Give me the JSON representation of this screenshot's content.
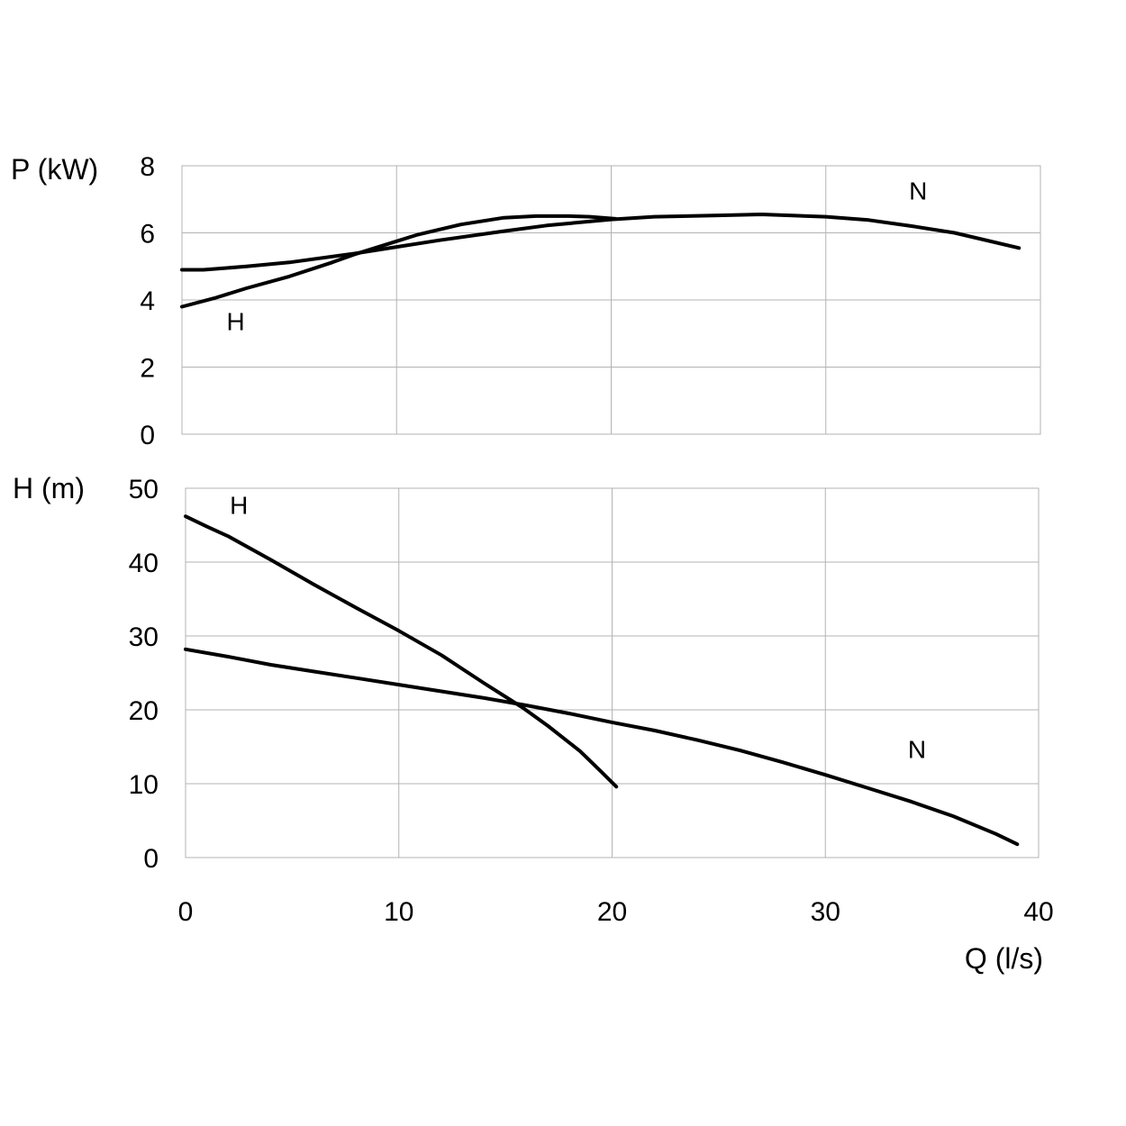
{
  "chart_data": [
    {
      "type": "line",
      "id": "power",
      "ylabel": "P (kW)",
      "xlim": [
        0,
        40
      ],
      "ylim": [
        0,
        8
      ],
      "x_ticks": [
        0,
        10,
        20,
        30,
        40
      ],
      "y_ticks": [
        0,
        2,
        4,
        6,
        8
      ],
      "grid": true,
      "series": [
        {
          "name": "N",
          "x": [
            0,
            1,
            3,
            5,
            8,
            10,
            12,
            15,
            17,
            20,
            22,
            25,
            27,
            30,
            32,
            34,
            36,
            39
          ],
          "y": [
            4.9,
            4.9,
            5.0,
            5.12,
            5.38,
            5.58,
            5.78,
            6.05,
            6.22,
            6.4,
            6.48,
            6.52,
            6.55,
            6.48,
            6.38,
            6.2,
            6.0,
            5.55
          ]
        },
        {
          "name": "H",
          "x": [
            0,
            1.5,
            3,
            5,
            7,
            8,
            10,
            11,
            13,
            15,
            16.5,
            18,
            19,
            20.2
          ],
          "y": [
            3.8,
            4.05,
            4.35,
            4.7,
            5.12,
            5.35,
            5.75,
            5.95,
            6.25,
            6.45,
            6.5,
            6.5,
            6.48,
            6.42
          ]
        }
      ],
      "annotations": [
        {
          "text": "N",
          "x": 34.3,
          "y": 7.0
        },
        {
          "text": "H",
          "x": 2.5,
          "y": 3.1
        }
      ]
    },
    {
      "type": "line",
      "id": "head",
      "ylabel": "H (m)",
      "xlabel": "Q (l/s)",
      "xlim": [
        0,
        40
      ],
      "ylim": [
        0,
        50
      ],
      "x_ticks": [
        0,
        10,
        20,
        30,
        40
      ],
      "y_ticks": [
        0,
        10,
        20,
        30,
        40,
        50
      ],
      "grid": true,
      "series": [
        {
          "name": "H",
          "x": [
            0,
            1,
            2,
            4,
            6,
            8,
            10,
            12,
            14,
            15.8,
            17,
            18.5,
            19.5,
            20.2
          ],
          "y": [
            46.2,
            44.8,
            43.5,
            40.3,
            37.0,
            33.8,
            30.7,
            27.4,
            23.6,
            20.3,
            17.8,
            14.4,
            11.6,
            9.6
          ]
        },
        {
          "name": "N",
          "x": [
            0,
            2,
            4,
            6,
            8,
            10,
            12,
            14,
            16,
            18,
            20,
            22,
            24,
            26,
            28,
            30,
            32,
            34,
            36,
            38,
            39
          ],
          "y": [
            28.2,
            27.2,
            26.1,
            25.2,
            24.3,
            23.4,
            22.5,
            21.6,
            20.6,
            19.5,
            18.3,
            17.2,
            15.9,
            14.5,
            12.9,
            11.2,
            9.4,
            7.6,
            5.6,
            3.2,
            1.8
          ]
        }
      ],
      "annotations": [
        {
          "text": "H",
          "x": 2.5,
          "y": 46.5
        },
        {
          "text": "N",
          "x": 34.3,
          "y": 13.5
        }
      ]
    }
  ]
}
